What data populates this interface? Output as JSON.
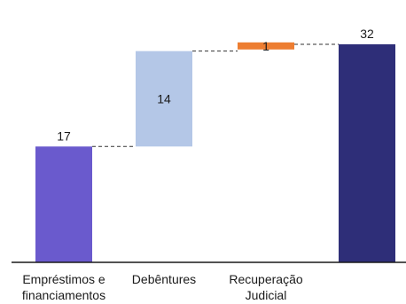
{
  "chart_data": {
    "type": "bar",
    "subtype": "waterfall",
    "title": "",
    "xlabel": "",
    "ylabel": "",
    "categories": [
      [
        "Empréstimos e",
        "financiamentos"
      ],
      [
        "Debêntures"
      ],
      [
        "Recuperação",
        "Judicial"
      ],
      [
        ""
      ]
    ],
    "values": [
      17,
      14,
      1,
      32
    ],
    "kinds": [
      "total",
      "increment",
      "increment",
      "total"
    ],
    "value_labels": [
      "17",
      "14",
      "1",
      "32"
    ],
    "label_positions": [
      "above",
      "inside",
      "inside",
      "above"
    ],
    "ylim": [
      0,
      38.5
    ],
    "grid": false,
    "legend": "none",
    "colors": [
      "#6a5acd",
      "#b4c7e7",
      "#ed7d31",
      "#2e2e78"
    ],
    "connector_color": "#333333",
    "value_label_colors": [
      "#1a1a1a",
      "#1a1a1a",
      "#ffffff",
      "#1a1a1a"
    ]
  }
}
